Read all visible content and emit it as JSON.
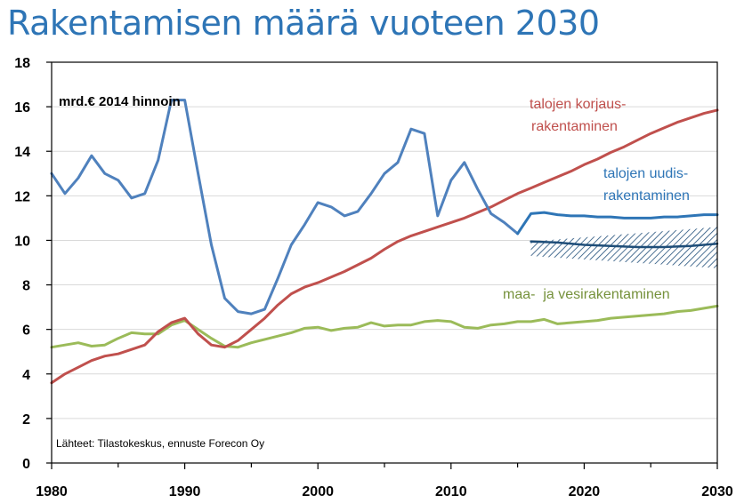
{
  "title": "Rakentamisen määrä vuoteen 2030",
  "chart_data": {
    "type": "line",
    "title": "Rakentamisen määrä vuoteen 2030",
    "unit_label": "mrd.€ 2014 hinnoin",
    "source_note": "Lähteet: Tilastokeskus, ennuste Forecon Oy",
    "xlim": [
      1980,
      2030
    ],
    "ylim": [
      0,
      18
    ],
    "x_ticks": [
      "1980",
      "1990",
      "2000",
      "2010",
      "2020",
      "2030"
    ],
    "y_ticks": [
      "0",
      "2",
      "4",
      "6",
      "8",
      "10",
      "12",
      "14",
      "16",
      "18"
    ],
    "grid": "horizontal",
    "series": [
      {
        "key": "uudis",
        "label_lines": [
          "talojen uudis-",
          "rakentaminen"
        ],
        "color": "#4f81bd",
        "x": [
          1980,
          1981,
          1982,
          1983,
          1984,
          1985,
          1986,
          1987,
          1988,
          1989,
          1990,
          1991,
          1992,
          1993,
          1994,
          1995,
          1996,
          1997,
          1998,
          1999,
          2000,
          2001,
          2002,
          2003,
          2004,
          2005,
          2006,
          2007,
          2008,
          2009,
          2010,
          2011,
          2012,
          2013,
          2014,
          2015
        ],
        "y": [
          13.0,
          12.1,
          12.8,
          13.8,
          13.0,
          12.7,
          11.9,
          12.1,
          13.6,
          16.3,
          16.3,
          13.0,
          9.8,
          7.4,
          6.8,
          6.7,
          6.9,
          8.3,
          9.8,
          10.7,
          11.7,
          11.5,
          11.1,
          11.3,
          12.1,
          13.0,
          13.5,
          15.0,
          14.8,
          11.1,
          12.7,
          13.5,
          12.3,
          11.2,
          10.8,
          10.3
        ]
      },
      {
        "key": "uudis_ennuste",
        "color": "#2e75b6",
        "x": [
          2015,
          2016,
          2017,
          2018,
          2019,
          2020,
          2021,
          2022,
          2023,
          2024,
          2025,
          2026,
          2027,
          2028,
          2029,
          2030
        ],
        "y": [
          10.3,
          11.2,
          11.25,
          11.15,
          11.1,
          11.1,
          11.05,
          11.05,
          11.0,
          11.0,
          11.0,
          11.05,
          11.05,
          11.1,
          11.15,
          11.15
        ]
      },
      {
        "key": "uudis_alt",
        "color": "#1f4e79",
        "x": [
          2016,
          2018,
          2020,
          2022,
          2024,
          2026,
          2028,
          2030
        ],
        "y": [
          9.95,
          9.9,
          9.8,
          9.75,
          9.7,
          9.7,
          9.75,
          9.85
        ]
      },
      {
        "key": "korjaus",
        "label_lines": [
          "talojen korjaus-",
          "rakentaminen"
        ],
        "color": "#c0504d",
        "x": [
          1980,
          1981,
          1982,
          1983,
          1984,
          1985,
          1986,
          1987,
          1988,
          1989,
          1990,
          1991,
          1992,
          1993,
          1994,
          1995,
          1996,
          1997,
          1998,
          1999,
          2000,
          2001,
          2002,
          2003,
          2004,
          2005,
          2006,
          2007,
          2008,
          2009,
          2010,
          2011,
          2012,
          2013,
          2014,
          2015,
          2016,
          2017,
          2018,
          2019,
          2020,
          2021,
          2022,
          2023,
          2024,
          2025,
          2026,
          2027,
          2028,
          2029,
          2030
        ],
        "y": [
          3.6,
          4.0,
          4.3,
          4.6,
          4.8,
          4.9,
          5.1,
          5.3,
          5.9,
          6.3,
          6.5,
          5.8,
          5.3,
          5.2,
          5.5,
          6.0,
          6.5,
          7.1,
          7.6,
          7.9,
          8.1,
          8.35,
          8.6,
          8.9,
          9.2,
          9.6,
          9.95,
          10.2,
          10.4,
          10.6,
          10.8,
          11.0,
          11.25,
          11.5,
          11.8,
          12.1,
          12.35,
          12.6,
          12.85,
          13.1,
          13.4,
          13.65,
          13.95,
          14.2,
          14.5,
          14.8,
          15.05,
          15.3,
          15.5,
          15.7,
          15.85
        ]
      },
      {
        "key": "maa",
        "label_lines": [
          "maa-  ja vesirakentaminen"
        ],
        "color": "#9bbb59",
        "x": [
          1980,
          1981,
          1982,
          1983,
          1984,
          1985,
          1986,
          1987,
          1988,
          1989,
          1990,
          1991,
          1992,
          1993,
          1994,
          1995,
          1996,
          1997,
          1998,
          1999,
          2000,
          2001,
          2002,
          2003,
          2004,
          2005,
          2006,
          2007,
          2008,
          2009,
          2010,
          2011,
          2012,
          2013,
          2014,
          2015,
          2016,
          2017,
          2018,
          2019,
          2020,
          2021,
          2022,
          2023,
          2024,
          2025,
          2026,
          2027,
          2028,
          2029,
          2030
        ],
        "y": [
          5.2,
          5.3,
          5.4,
          5.25,
          5.3,
          5.6,
          5.85,
          5.8,
          5.8,
          6.2,
          6.4,
          6.0,
          5.6,
          5.25,
          5.2,
          5.4,
          5.55,
          5.7,
          5.85,
          6.05,
          6.1,
          5.95,
          6.05,
          6.1,
          6.3,
          6.15,
          6.2,
          6.2,
          6.35,
          6.4,
          6.35,
          6.1,
          6.05,
          6.2,
          6.25,
          6.35,
          6.35,
          6.45,
          6.25,
          6.3,
          6.35,
          6.4,
          6.5,
          6.55,
          6.6,
          6.65,
          6.7,
          6.8,
          6.85,
          6.95,
          7.05
        ]
      }
    ],
    "band": {
      "x": [
        2016,
        2030
      ],
      "upper": [
        9.95,
        10.6
      ],
      "lower": [
        9.3,
        8.75
      ]
    }
  }
}
